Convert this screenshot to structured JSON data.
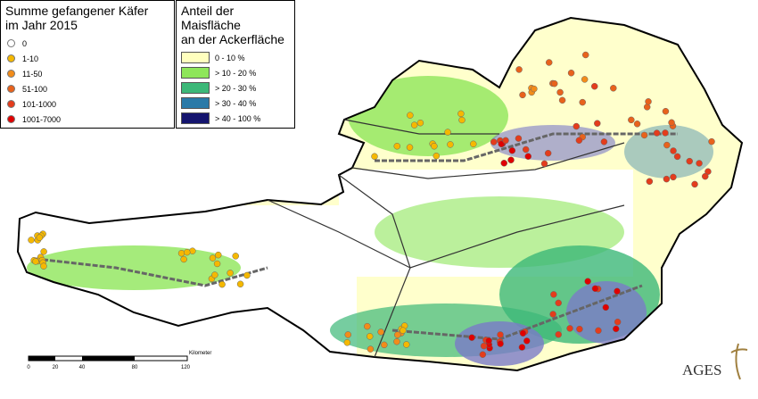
{
  "legend_traps": {
    "title_lines": [
      "Summe gefangener Käfer",
      "im Jahr 2015"
    ],
    "items": [
      {
        "label": "0",
        "color": "#ffffff"
      },
      {
        "label": "1-10",
        "color": "#f5b800"
      },
      {
        "label": "11-50",
        "color": "#f28c1a"
      },
      {
        "label": "51-100",
        "color": "#e8621c"
      },
      {
        "label": "101-1000",
        "color": "#e43c1c"
      },
      {
        "label": "1001-7000",
        "color": "#e00000"
      }
    ]
  },
  "legend_maize": {
    "title_lines": [
      "Anteil der Maisfläche",
      "an der Ackerfläche"
    ],
    "items": [
      {
        "label": "0 - 10 %",
        "color": "#ffffbe"
      },
      {
        "label": "> 10 - 20 %",
        "color": "#8ee65a"
      },
      {
        "label": "> 20 - 30 %",
        "color": "#3cb878"
      },
      {
        "label": "> 30 - 40 %",
        "color": "#2a7aa8"
      },
      {
        "label": "> 40 - 100 %",
        "color": "#14146e"
      }
    ]
  },
  "scale_bar": {
    "labels": [
      "0",
      "20",
      "40",
      "80",
      "120"
    ],
    "unit": "Kilometer"
  },
  "logo": {
    "text": "AGES"
  }
}
